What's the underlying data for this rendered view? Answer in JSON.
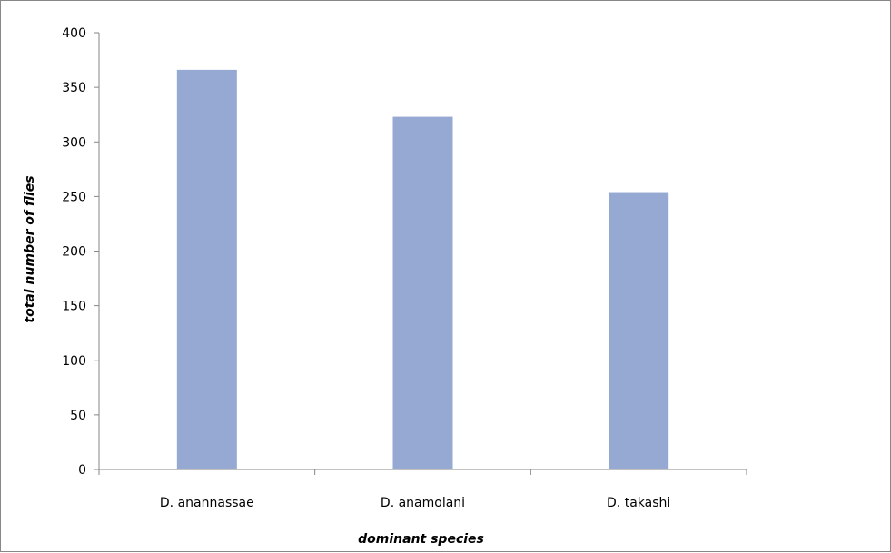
{
  "chart_data": {
    "type": "bar",
    "title": "",
    "xlabel": "dominant species",
    "ylabel": "total number of flies",
    "categories": [
      "D. anannassae",
      "D. anamolani",
      "D. takashi"
    ],
    "series": [
      {
        "values": [
          366,
          323,
          254
        ]
      }
    ],
    "ylim": [
      0,
      400
    ],
    "yticks": [
      "0",
      "50",
      "100",
      "150",
      "200",
      "250",
      "300",
      "350",
      "400"
    ],
    "grid": false,
    "legend": "none",
    "colors": {
      "bar": "#95a9d2",
      "axis": "#868686"
    }
  }
}
